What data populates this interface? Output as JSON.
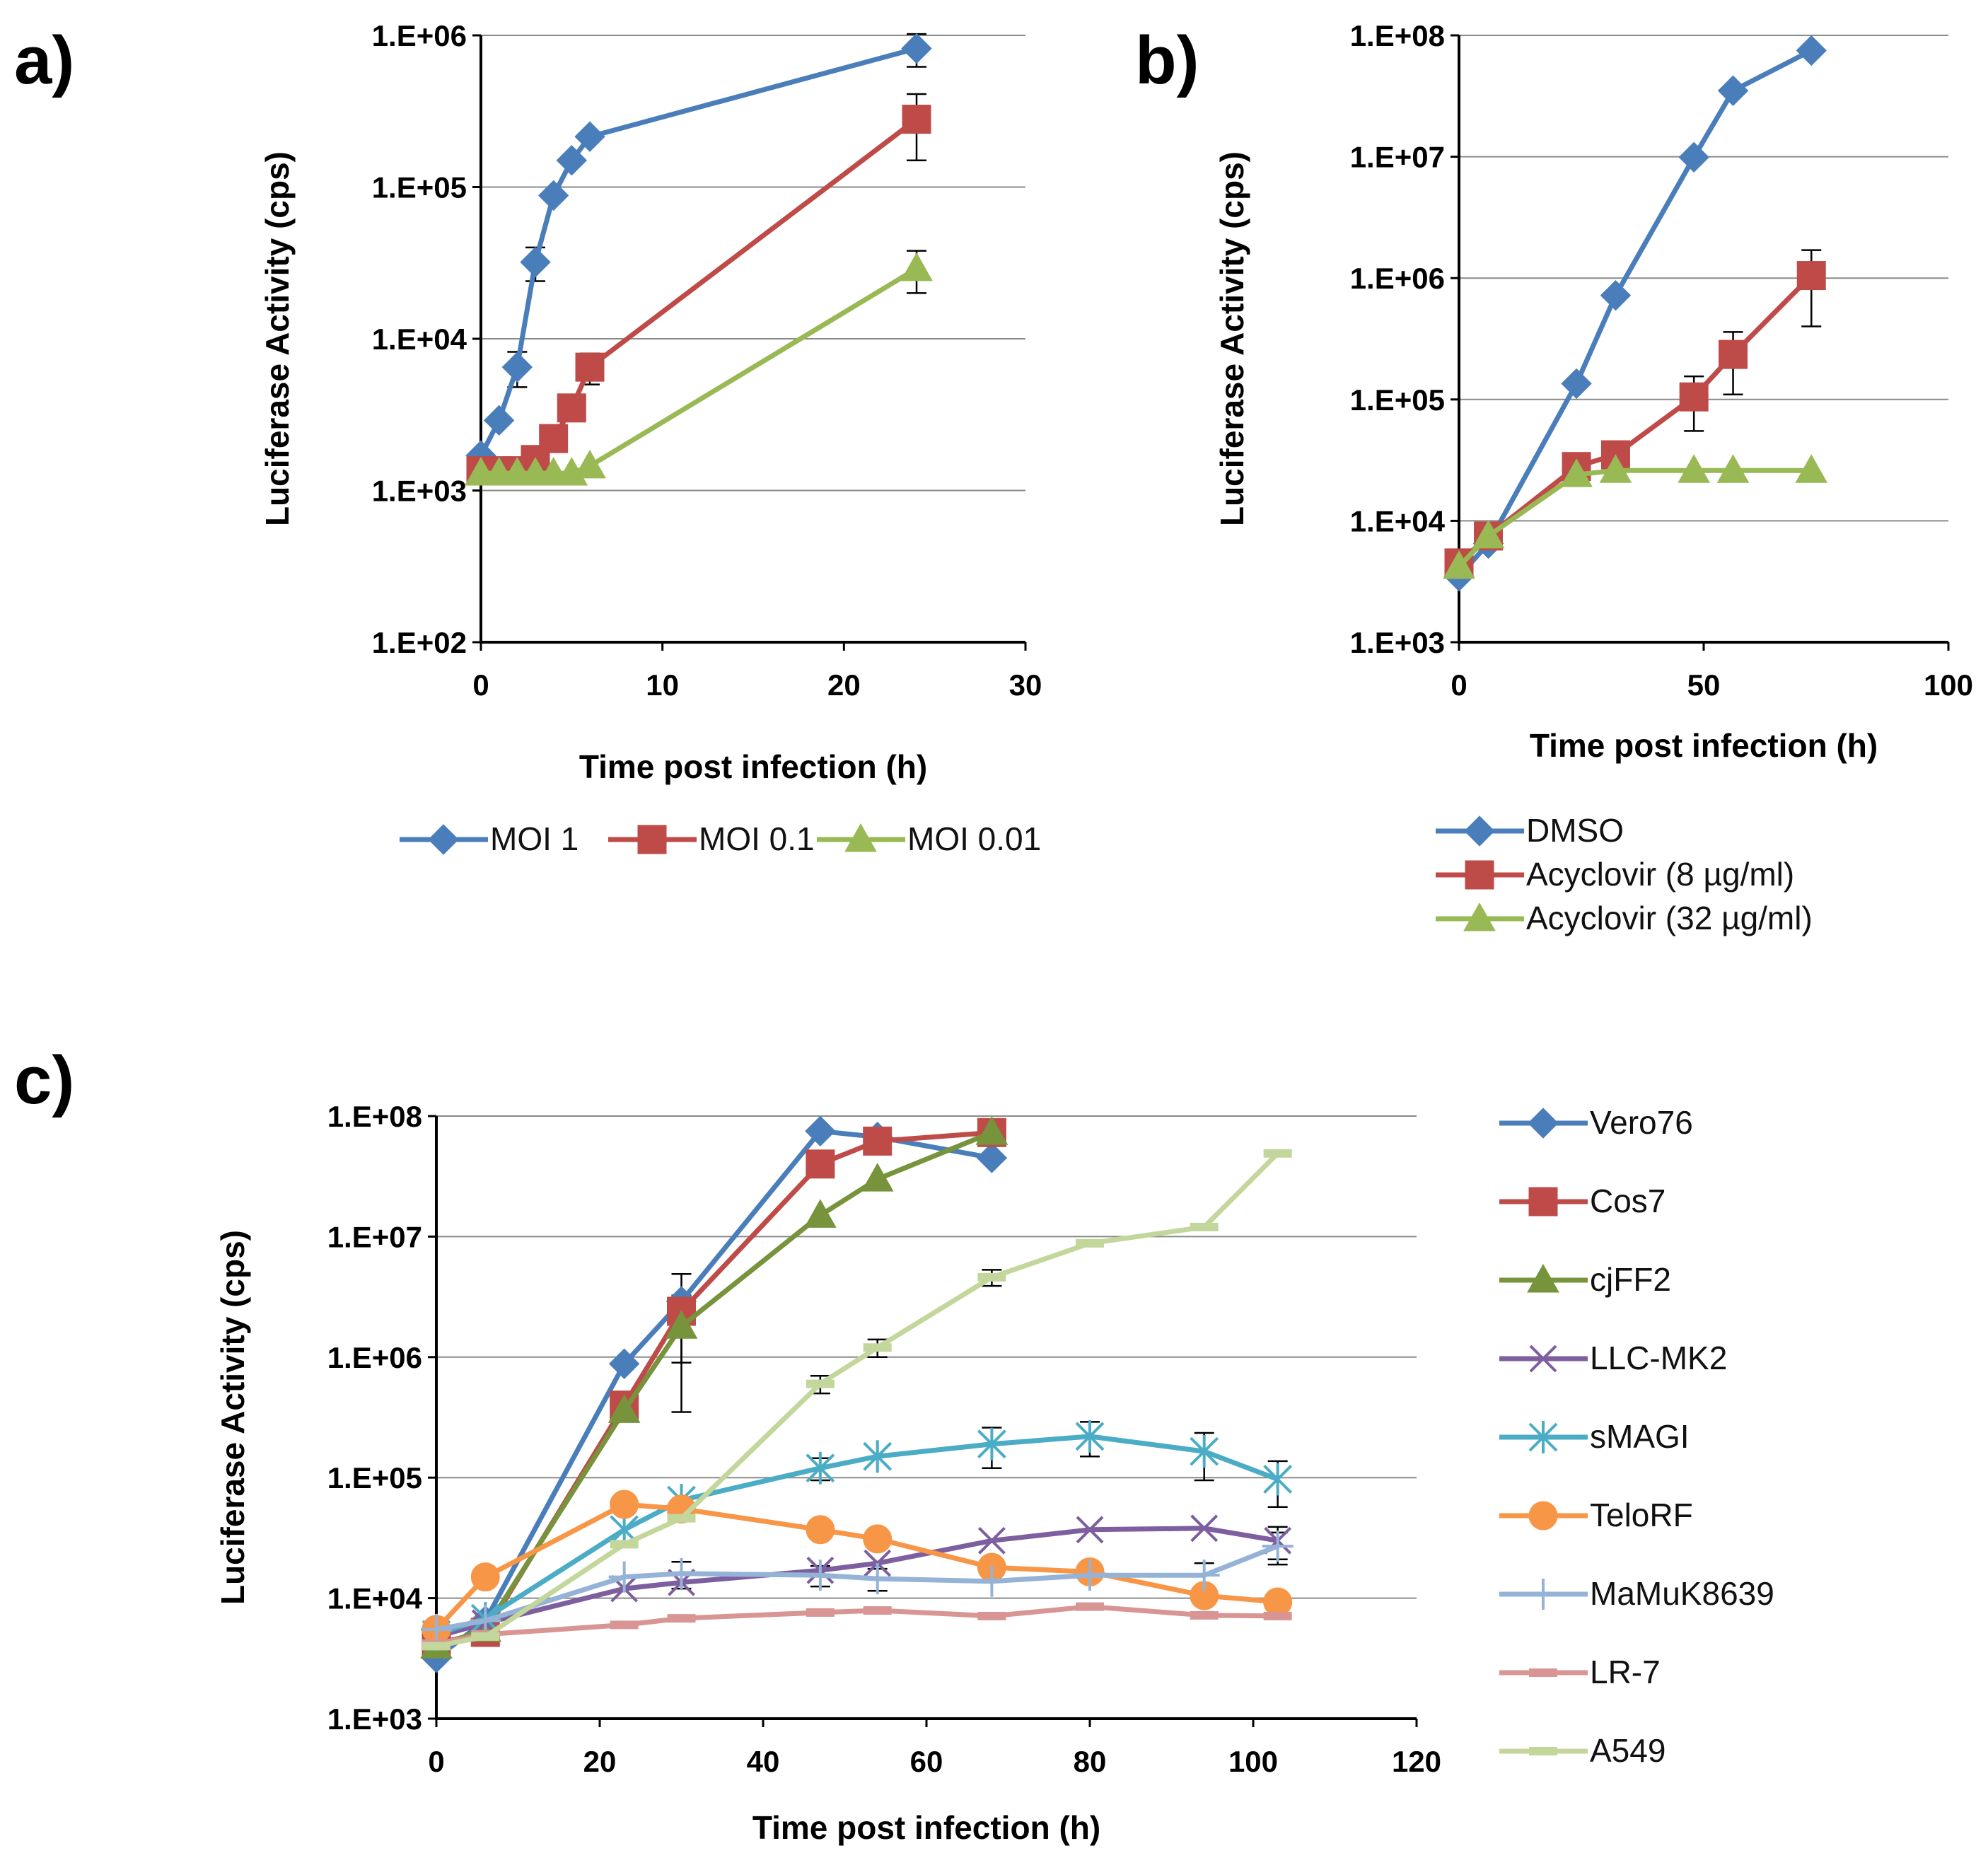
{
  "chart_data": [
    {
      "id": "a",
      "panel_label": "a)",
      "type": "line",
      "yscale": "log",
      "ylim": [
        100,
        1000000
      ],
      "xlim": [
        0,
        30
      ],
      "xticks": [
        0,
        10,
        20,
        30
      ],
      "yticks": [
        100,
        1000,
        10000,
        100000,
        1000000
      ],
      "ytick_labels": [
        "1.E+02",
        "1.E+03",
        "1.E+04",
        "1.E+05",
        "1.E+06"
      ],
      "xlabel": "Time post infection (h)",
      "ylabel": "Luciferase Activity (cps)",
      "legend_position": "bottom-horizontal",
      "series": [
        {
          "name": "MOI 1",
          "color": "#4A7EBB",
          "marker": "diamond",
          "x": [
            0,
            1,
            2,
            3,
            4,
            5,
            6,
            24
          ],
          "y": [
            1700,
            2900,
            6500,
            32000,
            88000,
            150000,
            215000,
            820000
          ],
          "err": [
            0,
            0,
            1700,
            8000,
            0,
            0,
            0,
            200000
          ]
        },
        {
          "name": "MOI 0.1",
          "color": "#BE4B48",
          "marker": "square",
          "x": [
            0,
            1,
            2,
            3,
            4,
            5,
            6,
            24
          ],
          "y": [
            1350,
            1350,
            1350,
            1600,
            2200,
            3500,
            6500,
            280000
          ],
          "err": [
            0,
            0,
            0,
            0,
            0,
            0,
            1500,
            130000
          ]
        },
        {
          "name": "MOI 0.01",
          "color": "#98B954",
          "marker": "triangle",
          "x": [
            0,
            1,
            2,
            3,
            4,
            5,
            6,
            24
          ],
          "y": [
            1300,
            1300,
            1300,
            1300,
            1300,
            1300,
            1450,
            29000
          ],
          "err": [
            0,
            0,
            0,
            0,
            0,
            0,
            0,
            9000
          ]
        }
      ]
    },
    {
      "id": "b",
      "panel_label": "b)",
      "type": "line",
      "yscale": "log",
      "ylim": [
        1000,
        100000000
      ],
      "xlim": [
        0,
        100
      ],
      "xticks": [
        0,
        50,
        100
      ],
      "yticks": [
        1000,
        10000,
        100000,
        1000000,
        10000000,
        100000000
      ],
      "ytick_labels": [
        "1.E+03",
        "1.E+04",
        "1.E+05",
        "1.E+06",
        "1.E+07",
        "1.E+08"
      ],
      "xlabel": "Time post infection (h)",
      "ylabel": "Luciferase Activity (cps)",
      "legend_position": "bottom-vertical",
      "series": [
        {
          "name": "DMSO",
          "color": "#4A7EBB",
          "marker": "diamond",
          "x": [
            0,
            6,
            24,
            32,
            48,
            56,
            72
          ],
          "y": [
            3500,
            6500,
            135000,
            720000,
            9900000,
            35000000,
            75000000
          ],
          "err": [
            0,
            0,
            0,
            0,
            0,
            0,
            0
          ]
        },
        {
          "name": "Acyclovir (8 µg/ml)",
          "color": "#BE4B48",
          "marker": "square",
          "x": [
            0,
            6,
            24,
            32,
            48,
            56,
            72
          ],
          "y": [
            4500,
            7500,
            28000,
            35000,
            105000,
            235000,
            1050000
          ],
          "err": [
            0,
            0,
            0,
            0,
            50000,
            125000,
            650000
          ]
        },
        {
          "name": "Acyclovir (32 µg/ml)",
          "color": "#98B954",
          "marker": "triangle",
          "x": [
            0,
            6,
            24,
            32,
            48,
            56,
            72
          ],
          "y": [
            4200,
            7500,
            24000,
            26000,
            26000,
            26000,
            26000
          ],
          "err": [
            0,
            0,
            0,
            0,
            0,
            0,
            0
          ]
        }
      ]
    },
    {
      "id": "c",
      "panel_label": "c)",
      "type": "line",
      "yscale": "log",
      "ylim": [
        1000,
        100000000
      ],
      "xlim": [
        0,
        120
      ],
      "xticks": [
        0,
        20,
        40,
        60,
        80,
        100,
        120
      ],
      "yticks": [
        1000,
        10000,
        100000,
        1000000,
        10000000,
        100000000
      ],
      "ytick_labels": [
        "1.E+03",
        "1.E+04",
        "1.E+05",
        "1.E+06",
        "1.E+07",
        "1.E+08"
      ],
      "xlabel": "Time post infection (h)",
      "ylabel": "Luciferase Activity (cps)",
      "legend_position": "right-vertical",
      "series": [
        {
          "name": "Vero76",
          "color": "#4A7EBB",
          "marker": "diamond",
          "x": [
            0,
            6,
            23,
            30,
            47,
            54,
            68
          ],
          "y": [
            3200,
            6500,
            880000,
            2900000,
            75000000,
            67000000,
            45000000
          ],
          "err": [
            0,
            0,
            0,
            2000000,
            0,
            0,
            0
          ]
        },
        {
          "name": "Cos7",
          "color": "#BE4B48",
          "marker": "square",
          "x": [
            0,
            6,
            23,
            30,
            47,
            54,
            68
          ],
          "y": [
            4200,
            5200,
            400000,
            2400000,
            40000000,
            62000000,
            73000000
          ],
          "err": [
            0,
            0,
            0,
            0,
            0,
            0,
            0
          ]
        },
        {
          "name": "cjFF2",
          "color": "#77933C",
          "marker": "triangle",
          "x": [
            0,
            6,
            23,
            30,
            47,
            54,
            68
          ],
          "y": [
            4000,
            5500,
            360000,
            1800000,
            15000000,
            30000000,
            73000000
          ],
          "err": [
            0,
            0,
            0,
            1450000,
            0,
            0,
            0
          ]
        },
        {
          "name": "LLC-MK2",
          "color": "#7D5FA0",
          "marker": "x",
          "x": [
            0,
            6,
            23,
            30,
            47,
            54,
            68,
            80,
            94,
            103
          ],
          "y": [
            4800,
            6200,
            12000,
            13500,
            17000,
            19500,
            30000,
            37000,
            38000,
            30000
          ],
          "err": [
            0,
            0,
            0,
            0,
            0,
            0,
            0,
            0,
            0,
            9000
          ]
        },
        {
          "name": "sMAGI",
          "color": "#4BACC6",
          "marker": "star",
          "x": [
            0,
            6,
            23,
            30,
            47,
            54,
            68,
            80,
            94,
            103
          ],
          "y": [
            5000,
            6800,
            37000,
            65000,
            120000,
            150000,
            190000,
            220000,
            165000,
            97000
          ],
          "err": [
            0,
            0,
            0,
            0,
            25000,
            0,
            70000,
            70000,
            70000,
            40000
          ]
        },
        {
          "name": "TeloRF",
          "color": "#F79646",
          "marker": "circle",
          "x": [
            0,
            6,
            23,
            30,
            47,
            54,
            68,
            80,
            94,
            103
          ],
          "y": [
            5500,
            15000,
            60000,
            55000,
            37000,
            31000,
            18000,
            16500,
            10500,
            9300
          ],
          "err": [
            0,
            0,
            0,
            0,
            0,
            0,
            0,
            0,
            0,
            0
          ]
        },
        {
          "name": "MaMuK8639",
          "color": "#95B3D7",
          "marker": "plus",
          "x": [
            0,
            6,
            23,
            30,
            47,
            54,
            68,
            80,
            94,
            103
          ],
          "y": [
            5500,
            6500,
            15000,
            16000,
            15500,
            14500,
            13800,
            15500,
            15500,
            27000
          ],
          "err": [
            0,
            0,
            0,
            4000,
            3000,
            3000,
            0,
            0,
            4000,
            8000
          ]
        },
        {
          "name": "LR-7",
          "color": "#D99594",
          "marker": "dash",
          "x": [
            0,
            6,
            23,
            30,
            47,
            54,
            68,
            80,
            94,
            103
          ],
          "y": [
            4200,
            5000,
            6000,
            6800,
            7600,
            7900,
            7100,
            8500,
            7200,
            7100
          ],
          "err": [
            0,
            0,
            0,
            0,
            0,
            0,
            0,
            0,
            0,
            0
          ]
        },
        {
          "name": "A549",
          "color": "#C3D69B",
          "marker": "dash",
          "x": [
            0,
            6,
            23,
            30,
            47,
            54,
            68,
            80,
            94,
            103
          ],
          "y": [
            4000,
            4800,
            28000,
            46000,
            600000,
            1200000,
            4600000,
            8800000,
            12000000,
            49000000
          ],
          "err": [
            0,
            0,
            0,
            0,
            100000,
            200000,
            700000,
            0,
            0,
            0
          ]
        }
      ]
    }
  ]
}
